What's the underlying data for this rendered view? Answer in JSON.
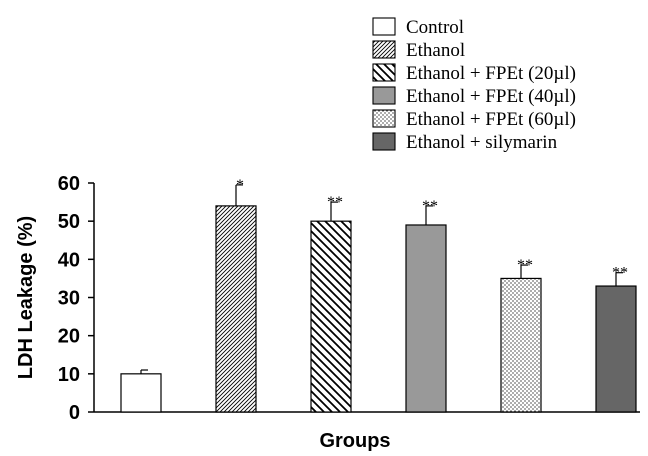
{
  "chart_data": {
    "type": "bar",
    "categories": [
      "Control",
      "Ethanol",
      "Ethanol + FPEt (20µl)",
      "Ethanol + FPEt (40µl)",
      "Ethanol + FPEt (60µl)",
      "Ethanol + silymarin"
    ],
    "values": [
      10,
      54,
      50,
      49,
      35,
      33
    ],
    "errors": [
      1,
      5.5,
      5,
      5,
      3.5,
      3.5
    ],
    "significance": [
      "",
      "*",
      "**",
      "**",
      "**",
      "**"
    ],
    "fills": [
      "white",
      "hatch-dense",
      "hatch-wide",
      "#999999",
      "dots",
      "#666666"
    ],
    "xlabel": "Groups",
    "ylabel": "LDH Leakage (%)",
    "ylim": [
      0,
      60
    ],
    "yticks": [
      0,
      10,
      20,
      30,
      40,
      50,
      60
    ],
    "grid": false,
    "legend": "top-right"
  }
}
